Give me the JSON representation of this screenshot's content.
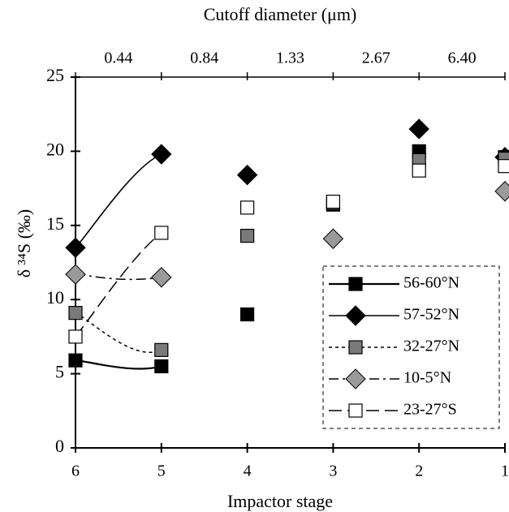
{
  "chart_data": {
    "type": "line",
    "xlabel": "Impactor stage",
    "ylabel": "δ ³⁴S (‰)",
    "x2label": "Cutoff diameter  (μm)",
    "categories": [
      "6",
      "5",
      "4",
      "3",
      "2",
      "1"
    ],
    "x2_categories": [
      "0.44",
      "0.84",
      "1.33",
      "2.67",
      "6.40"
    ],
    "ylim": [
      0,
      25
    ],
    "yticks": [
      0,
      5,
      10,
      15,
      20,
      25
    ],
    "line_color": "#000000",
    "smooth": true,
    "connect_gaps": true,
    "legend": "lower right",
    "series": [
      {
        "name": "56-60°N",
        "color": "#000000",
        "marker": "square",
        "dash": "solid-thick",
        "values": [
          5.9,
          5.5,
          9.0,
          16.4,
          20.0,
          19.6
        ]
      },
      {
        "name": "57-52°N",
        "color": "#000000",
        "marker": "diamond",
        "dash": "solid",
        "values": [
          13.5,
          19.8,
          18.4,
          null,
          21.5,
          19.6
        ]
      },
      {
        "name": "32-27°N",
        "color": "#7a7a7a",
        "marker": "square",
        "dash": "short",
        "values": [
          9.1,
          6.6,
          14.3,
          16.5,
          19.4,
          19.5
        ]
      },
      {
        "name": "10-5°N",
        "color": "#9a9a9a",
        "marker": "diamond",
        "dash": "dashdot",
        "values": [
          11.7,
          11.5,
          null,
          14.1,
          null,
          17.3
        ]
      },
      {
        "name": "23-27°S",
        "color": "#ffffff",
        "marker": "square",
        "dash": "long",
        "values": [
          7.5,
          14.5,
          16.2,
          16.6,
          18.7,
          19.0
        ]
      }
    ]
  }
}
